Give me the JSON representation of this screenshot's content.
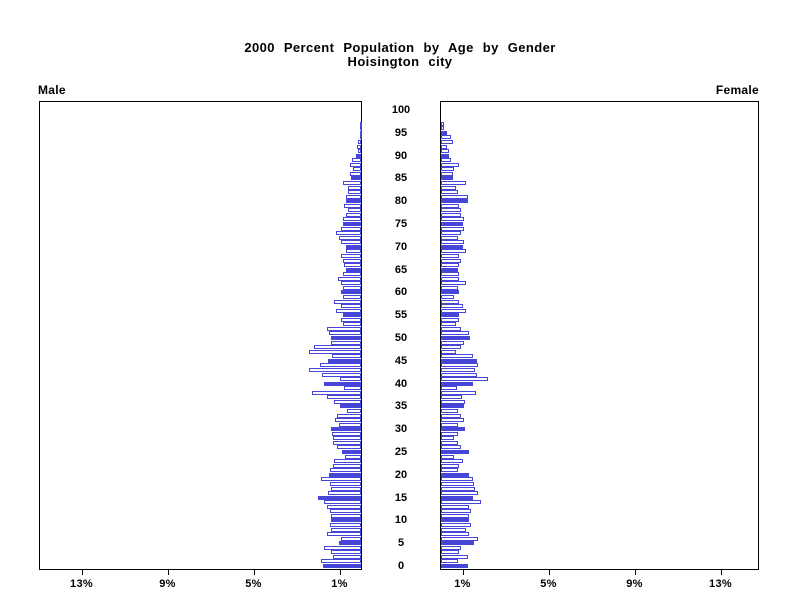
{
  "title": {
    "line1": "2000 Percent Population by Age by Gender",
    "line2": "Hoisington city"
  },
  "panel_labels": {
    "male": "Male",
    "female": "Female"
  },
  "colors": {
    "bar_blue": "#4646d8",
    "bar_fill": "#ffffff",
    "axis_ink": "#000000",
    "background": "#ffffff"
  },
  "chart_data": {
    "type": "bar",
    "subtype": "population-pyramid",
    "title": "2000 Percent Population by Age by Gender",
    "subtitle": "Hoisington city",
    "unit": "percent of population",
    "orientation": "horizontal, male bars extend left, female bars extend right",
    "highlight_every": 5,
    "age_range": [
      0,
      100
    ],
    "age_tick_values": [
      0,
      5,
      10,
      15,
      20,
      25,
      30,
      35,
      40,
      45,
      50,
      55,
      60,
      65,
      70,
      75,
      80,
      85,
      90,
      95,
      100
    ],
    "pct_tick_values": [
      1,
      5,
      9,
      13
    ],
    "male_axis_tick_labels": [
      "13%",
      "9%",
      "5%",
      "1%"
    ],
    "female_axis_tick_labels": [
      "1%",
      "5%",
      "9%",
      "13%"
    ],
    "xlim_pct": [
      0,
      15
    ],
    "grid": false,
    "series": [
      {
        "name": "Male",
        "values_by_age": [
          1.75,
          1.85,
          1.3,
          1.4,
          1.7,
          1.0,
          0.95,
          1.6,
          1.4,
          1.45,
          1.4,
          1.4,
          1.45,
          1.6,
          1.7,
          2.0,
          1.55,
          1.4,
          1.45,
          1.85,
          1.5,
          1.45,
          1.3,
          1.24,
          0.74,
          0.9,
          1.12,
          1.28,
          1.32,
          1.35,
          1.39,
          1.0,
          1.2,
          1.1,
          0.66,
          0.97,
          1.24,
          1.6,
          2.28,
          0.8,
          1.73,
          0.97,
          1.82,
          2.44,
          1.93,
          1.54,
          1.34,
          2.4,
          2.2,
          1.4,
          1.4,
          1.5,
          1.6,
          0.85,
          0.93,
          0.85,
          1.16,
          0.93,
          1.24,
          0.85,
          0.93,
          0.85,
          0.93,
          1.08,
          0.85,
          0.7,
          0.77,
          0.85,
          0.93,
          0.7,
          0.7,
          0.93,
          1.0,
          1.16,
          0.93,
          0.85,
          0.85,
          0.7,
          0.62,
          0.77,
          0.7,
          0.7,
          0.62,
          0.6,
          0.85,
          0.45,
          0.5,
          0.35,
          0.5,
          0.4,
          0.25,
          0.12,
          0.2,
          0.12,
          0.06,
          0.06,
          0.05,
          0.04,
          0,
          0,
          0
        ]
      },
      {
        "name": "Female",
        "values_by_age": [
          1.25,
          0.77,
          1.24,
          0.85,
          0.93,
          1.55,
          1.7,
          1.3,
          1.16,
          1.4,
          1.3,
          1.3,
          1.4,
          1.3,
          1.85,
          1.47,
          1.7,
          1.6,
          1.55,
          1.47,
          1.3,
          0.77,
          0.85,
          1.0,
          0.62,
          1.28,
          0.93,
          0.77,
          0.62,
          0.77,
          1.1,
          0.77,
          1.05,
          0.93,
          0.77,
          1.08,
          1.12,
          0.97,
          1.63,
          0.74,
          1.51,
          2.2,
          1.66,
          1.59,
          1.74,
          1.66,
          1.5,
          0.71,
          0.93,
          1.05,
          1.33,
          1.3,
          0.93,
          0.7,
          0.85,
          0.85,
          1.16,
          1.0,
          0.85,
          0.62,
          0.85,
          0.77,
          1.16,
          0.85,
          0.85,
          0.77,
          0.85,
          0.93,
          0.85,
          1.16,
          1.0,
          1.08,
          0.77,
          0.93,
          1.08,
          1.0,
          1.08,
          0.93,
          0.93,
          0.85,
          1.24,
          1.24,
          0.77,
          0.7,
          1.16,
          0.54,
          0.54,
          0.62,
          0.85,
          0.46,
          0.39,
          0.39,
          0.28,
          0.54,
          0.46,
          0.3,
          0.12,
          0.12,
          0,
          0,
          0
        ]
      }
    ]
  }
}
